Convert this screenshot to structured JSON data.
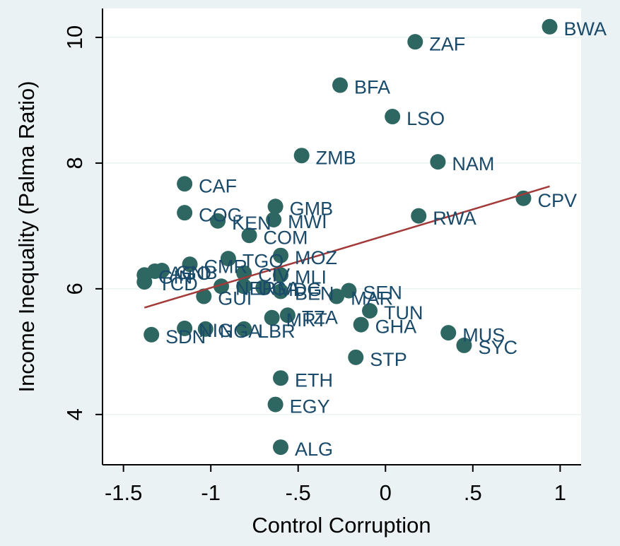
{
  "chart_data": {
    "type": "scatter",
    "x_label": "Control Corruption",
    "y_label": "Income Inequality (Palma Ratio)",
    "labels": [
      "BWA",
      "ZAF",
      "BFA",
      "LSO",
      "ZMB",
      "NAM",
      "CPV",
      "CAF",
      "GMB",
      "COG",
      "RWA",
      "KEN",
      "MWI",
      "COM",
      "TGO",
      "MOZ",
      "CMR",
      "GIN",
      "TCD",
      "AGO",
      "GNB",
      "CIV",
      "MLI",
      "UGA",
      "NER",
      "GUI",
      "MDG",
      "BEN",
      "MAR",
      "SEN",
      "TZA",
      "MRT",
      "GHA",
      "TUN",
      "MUS",
      "SYC",
      "STP",
      "ETH",
      "EGY",
      "ALG",
      "SDN",
      "NIG",
      "NGA",
      "LBR"
    ],
    "x": [
      0.94,
      0.17,
      -0.26,
      0.04,
      -0.48,
      0.3,
      0.79,
      -1.15,
      -0.63,
      -1.15,
      0.19,
      -0.96,
      -0.64,
      -0.78,
      -0.9,
      -0.6,
      -1.12,
      -1.38,
      -1.38,
      -1.32,
      -1.28,
      -0.81,
      -0.6,
      -0.81,
      -0.94,
      -1.04,
      -0.7,
      -0.6,
      -0.28,
      -0.21,
      -0.56,
      -0.65,
      -0.14,
      -0.09,
      0.36,
      0.45,
      -0.17,
      -0.6,
      -0.63,
      -0.6,
      -1.34,
      -1.15,
      -1.03,
      -0.81
    ],
    "values": [
      10.17,
      9.93,
      9.24,
      8.74,
      8.12,
      8.02,
      7.44,
      7.67,
      7.31,
      7.21,
      7.16,
      7.08,
      7.1,
      6.85,
      6.48,
      6.53,
      6.39,
      6.22,
      6.11,
      6.28,
      6.29,
      6.25,
      6.22,
      6.04,
      6.04,
      5.88,
      6.02,
      5.96,
      5.88,
      5.97,
      5.58,
      5.54,
      5.43,
      5.65,
      5.3,
      5.1,
      4.91,
      4.58,
      4.16,
      3.48,
      5.27,
      5.37,
      5.36,
      5.36
    ],
    "color": "#2e6661",
    "fit_line": {
      "x": [
        -1.38,
        0.94
      ],
      "y": [
        5.7,
        7.63
      ],
      "color": "#a33a3a"
    },
    "xlim": [
      -1.62,
      1.12
    ],
    "ylim": [
      3.2,
      10.46
    ],
    "xticks": [
      -1.5,
      -1,
      {
        "value": -0.5,
        "label": "-.5"
      },
      0,
      {
        "value": 0.5,
        "label": ".5"
      },
      1
    ],
    "yticks": [
      4,
      6,
      8,
      10
    ],
    "grid": true
  }
}
